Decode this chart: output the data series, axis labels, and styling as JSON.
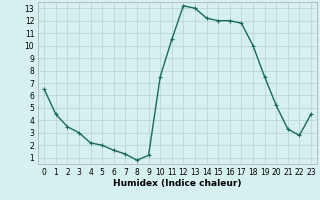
{
  "x": [
    0,
    1,
    2,
    3,
    4,
    5,
    6,
    7,
    8,
    9,
    10,
    11,
    12,
    13,
    14,
    15,
    16,
    17,
    18,
    19,
    20,
    21,
    22,
    23
  ],
  "y": [
    6.5,
    4.5,
    3.5,
    3.0,
    2.2,
    2.0,
    1.6,
    1.3,
    0.8,
    1.2,
    7.5,
    10.5,
    13.2,
    13.0,
    12.2,
    12.0,
    12.0,
    11.8,
    10.0,
    7.5,
    5.2,
    3.3,
    2.8,
    4.5
  ],
  "line_color": "#1a6b5a",
  "marker": "+",
  "markersize": 3,
  "linewidth": 1.0,
  "background_color": "#d6f0ef",
  "grid_color": "#b8d8d5",
  "xlabel": "Humidex (Indice chaleur)",
  "xlabel_fontsize": 6.5,
  "tick_fontsize": 5.5,
  "xlim": [
    -0.5,
    23.5
  ],
  "ylim": [
    0.5,
    13.5
  ],
  "yticks": [
    1,
    2,
    3,
    4,
    5,
    6,
    7,
    8,
    9,
    10,
    11,
    12,
    13
  ],
  "xticks": [
    0,
    1,
    2,
    3,
    4,
    5,
    6,
    7,
    8,
    9,
    10,
    11,
    12,
    13,
    14,
    15,
    16,
    17,
    18,
    19,
    20,
    21,
    22,
    23
  ]
}
